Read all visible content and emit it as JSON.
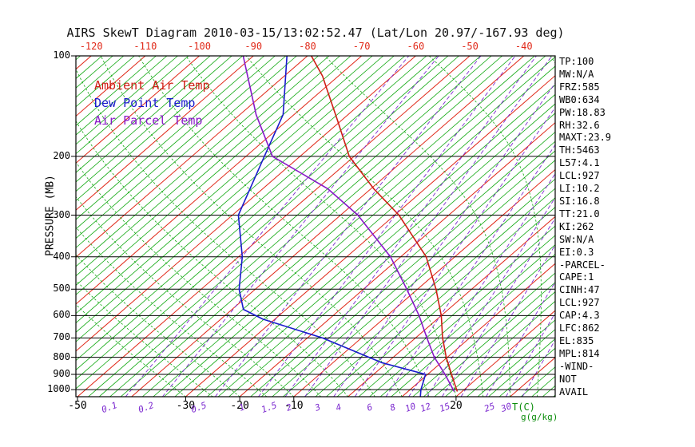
{
  "chart_data": {
    "type": "skewt-log-p",
    "title": "AIRS SkewT Diagram 2010-03-15/13:02:52.47 (Lat/Lon 20.97/-167.93 deg)",
    "pressure_axis": {
      "label": "PRESSURE (MB)",
      "scale": "log",
      "range": [
        100,
        1050
      ],
      "ticks": [
        100,
        200,
        300,
        400,
        500,
        600,
        700,
        800,
        900,
        1000
      ]
    },
    "temp_axis": {
      "unit_label": "T(C)",
      "top_labels": [
        -120,
        -110,
        -100,
        -90,
        -80,
        -70,
        -60,
        -50,
        -40
      ],
      "bottom_labels": [
        -50,
        -30,
        -20,
        -10,
        20
      ]
    },
    "mixing_ratio_axis": {
      "unit_label": "g(g/kg)",
      "line_values": [
        0.1,
        0.2,
        0.5,
        1,
        1.5,
        2,
        3,
        4,
        6,
        8,
        10,
        12,
        15,
        20,
        25,
        30
      ],
      "label_values": [
        0.1,
        0.2,
        0.5,
        1,
        1.5,
        2,
        3,
        4,
        6,
        8,
        10,
        12,
        15,
        25,
        30
      ]
    },
    "isotherms": {
      "minor_step": 2,
      "major_step": 10,
      "range": [
        -130,
        38
      ]
    },
    "moist_adiabats": {
      "surface_temps": [
        -30,
        -25,
        -20,
        -15,
        -10,
        -5,
        0,
        5,
        10,
        15,
        20,
        25,
        30,
        35,
        40,
        45
      ]
    },
    "colors": {
      "isotherm_minor": "#0fa80f",
      "isotherm_major": "#e02818",
      "moist_adiabat": "#0fa80f",
      "mixing_ratio": "#7d2bd0",
      "pressure_line": "#000000",
      "top_label": "#e02818",
      "bottom_temp_label": "#000000",
      "mixing_label": "#7d2bd0",
      "unit_label": "#0a8c0a",
      "border": "#000000"
    },
    "series": [
      {
        "name": "Ambient Air Temp",
        "color": "#cf1d14",
        "points": [
          [
            1010,
            19.0
          ],
          [
            1000,
            18.6
          ],
          [
            900,
            14.4
          ],
          [
            800,
            9.8
          ],
          [
            700,
            5.0
          ],
          [
            600,
            0.0
          ],
          [
            500,
            -6.6
          ],
          [
            400,
            -15.3
          ],
          [
            300,
            -29.2
          ],
          [
            250,
            -39.5
          ],
          [
            200,
            -50.9
          ],
          [
            155,
            -61.0
          ],
          [
            125,
            -69.6
          ],
          [
            115,
            -72.9
          ],
          [
            100,
            -79.3
          ]
        ]
      },
      {
        "name": "Dew Point Temp",
        "color": "#1a1acd",
        "points": [
          [
            1050,
            13.4
          ],
          [
            1000,
            12.0
          ],
          [
            900,
            9.6
          ],
          [
            830,
            -1.0
          ],
          [
            700,
            -17.2
          ],
          [
            615,
            -32.2
          ],
          [
            575,
            -37.9
          ],
          [
            500,
            -43.0
          ],
          [
            400,
            -49.3
          ],
          [
            300,
            -58.9
          ],
          [
            200,
            -66.6
          ],
          [
            150,
            -72.0
          ],
          [
            100,
            -83.8
          ]
        ]
      },
      {
        "name": "Air Parcel Temp",
        "color": "#8818c8",
        "points": [
          [
            1010,
            18.4
          ],
          [
            900,
            13.2
          ],
          [
            800,
            7.6
          ],
          [
            700,
            2.1
          ],
          [
            600,
            -4.1
          ],
          [
            500,
            -12.0
          ],
          [
            400,
            -21.9
          ],
          [
            300,
            -36.8
          ],
          [
            250,
            -48.0
          ],
          [
            200,
            -65.1
          ],
          [
            150,
            -77.0
          ],
          [
            100,
            -91.9
          ]
        ]
      }
    ]
  },
  "side_panel": {
    "lines": [
      "TP:100",
      "MW:N/A",
      "FRZ:585",
      "WB0:634",
      "PW:18.83",
      "RH:32.6",
      "MAXT:23.9",
      "TH:5463",
      "L57:4.1",
      "LCL:927",
      "LI:10.2",
      "SI:16.8",
      "TT:21.0",
      "KI:262",
      "SW:N/A",
      "EI:0.3",
      "-PARCEL-",
      "CAPE:1",
      "CINH:47",
      "LCL:927",
      "CAP:4.3",
      "LFC:862",
      "EL:835",
      "MPL:814",
      "-WIND-",
      "NOT",
      "AVAIL"
    ]
  }
}
